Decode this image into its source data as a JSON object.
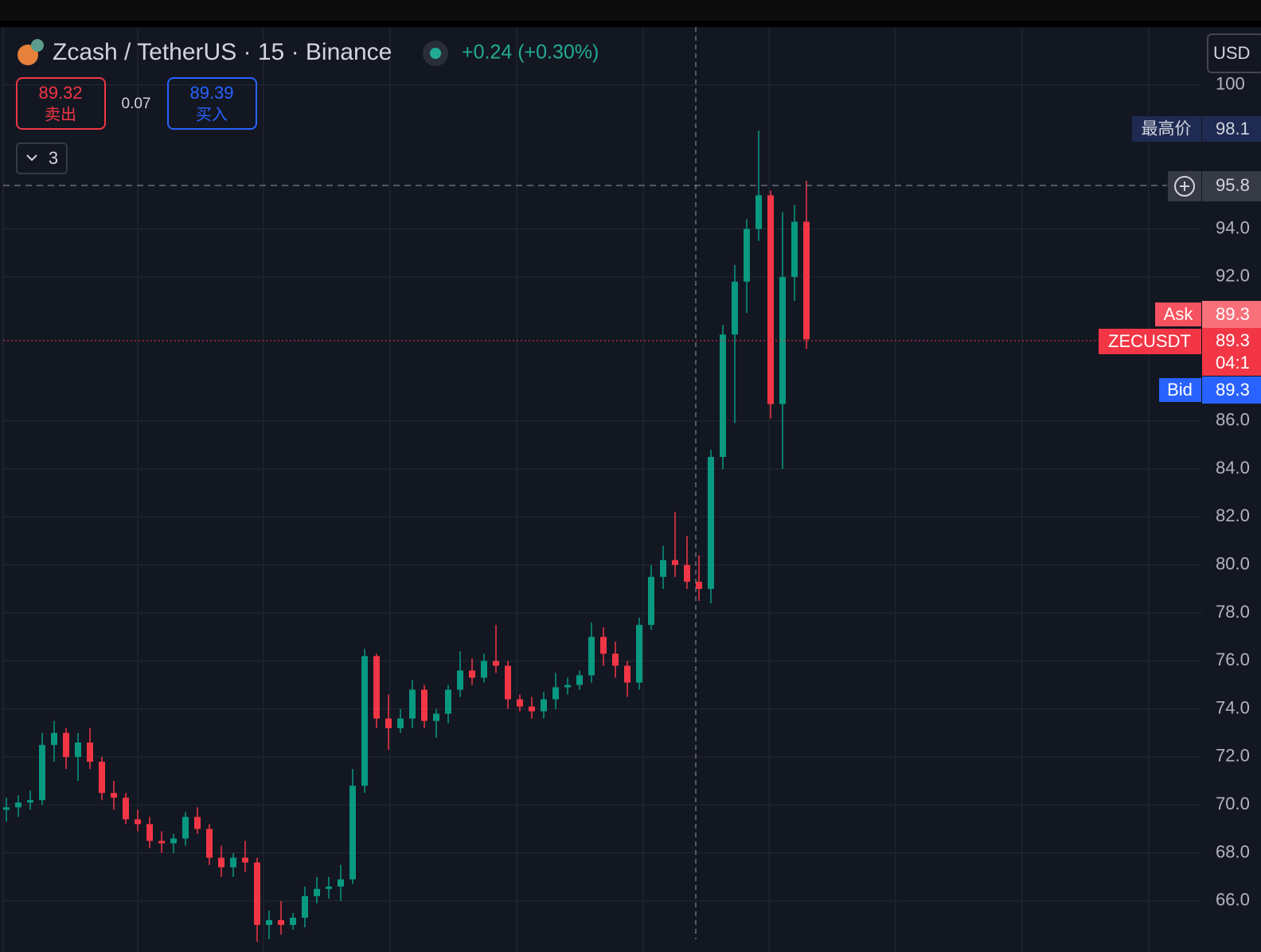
{
  "header": {
    "symbol_title": "Zcash / TetherUS · 15 · Binance",
    "change": "+0.24 (+0.30%)",
    "sell_price": "89.32",
    "sell_label": "卖出",
    "spread": "0.07",
    "buy_price": "89.39",
    "buy_label": "买入",
    "indicator_count": "3",
    "currency": "USD"
  },
  "price_labels": {
    "high_label": "最高价",
    "high_price": "98.1",
    "crosshair_price": "95.8",
    "ask_label": "Ask",
    "ask_price": "89.3",
    "symbol_label": "ZECUSDT",
    "last_price": "89.3",
    "countdown": "04:1",
    "bid_label": "Bid",
    "bid_price": "89.3"
  },
  "chart_data": {
    "type": "candlestick",
    "up_color": "#089981",
    "down_color": "#f23645",
    "grid": true,
    "ylim": [
      64.27,
      102.41
    ],
    "yticks": [
      {
        "value": 66,
        "label": "66.0"
      },
      {
        "value": 68,
        "label": "68.0"
      },
      {
        "value": 70,
        "label": "70.0"
      },
      {
        "value": 72,
        "label": "72.0"
      },
      {
        "value": 74,
        "label": "74.0"
      },
      {
        "value": 76,
        "label": "76.0"
      },
      {
        "value": 78,
        "label": "78.0"
      },
      {
        "value": 80,
        "label": "80.0"
      },
      {
        "value": 82,
        "label": "82.0"
      },
      {
        "value": 84,
        "label": "84.0"
      },
      {
        "value": 86,
        "label": "86.0"
      },
      {
        "value": 92,
        "label": "92.0"
      },
      {
        "value": 94,
        "label": "94.0"
      },
      100
    ],
    "open": [
      69.8,
      69.9,
      70.1,
      70.2,
      72.5,
      73.0,
      72.0,
      72.6,
      71.8,
      70.5,
      70.3,
      69.4,
      69.2,
      68.5,
      68.4,
      68.6,
      69.5,
      69.0,
      67.8,
      67.4,
      67.8,
      67.6,
      65.0,
      65.2,
      65.0,
      65.3,
      66.2,
      66.5,
      66.6,
      66.9,
      70.8,
      76.2,
      73.6,
      73.2,
      73.6,
      74.8,
      73.5,
      73.8,
      74.8,
      75.6,
      75.3,
      76.0,
      75.8,
      74.4,
      74.1,
      73.9,
      74.4,
      74.9,
      75.0,
      75.4,
      77.0,
      76.3,
      75.8,
      75.1,
      77.5,
      79.5,
      80.2,
      80.0,
      79.3,
      79.0,
      84.5,
      89.6,
      91.8,
      94.0,
      95.4,
      86.7,
      92.0,
      94.3
    ],
    "high": [
      70.3,
      70.4,
      70.6,
      73.0,
      73.5,
      73.2,
      73.0,
      73.2,
      72.0,
      71.0,
      70.5,
      69.8,
      69.5,
      68.9,
      68.8,
      69.7,
      69.9,
      69.2,
      68.3,
      68.0,
      68.5,
      67.8,
      65.6,
      66.0,
      65.5,
      66.6,
      67.0,
      67.0,
      67.5,
      71.5,
      76.5,
      76.3,
      74.6,
      74.0,
      75.2,
      75.0,
      74.0,
      75.0,
      76.4,
      76.1,
      76.3,
      77.5,
      76.0,
      74.6,
      74.5,
      74.7,
      75.5,
      75.3,
      75.6,
      77.6,
      77.4,
      76.8,
      76.0,
      77.8,
      80.0,
      80.8,
      82.2,
      81.2,
      80.4,
      84.8,
      90.0,
      92.5,
      94.4,
      98.1,
      95.6,
      94.7,
      95.0,
      96.0
    ],
    "low": [
      69.3,
      69.5,
      69.8,
      70.0,
      71.8,
      71.5,
      71.0,
      71.5,
      70.2,
      69.8,
      69.2,
      68.9,
      68.2,
      68.0,
      68.0,
      68.3,
      68.8,
      67.5,
      67.0,
      67.0,
      67.2,
      64.3,
      64.4,
      64.6,
      64.8,
      64.9,
      65.9,
      66.1,
      66.0,
      66.7,
      70.5,
      73.2,
      72.3,
      73.0,
      73.2,
      73.2,
      72.8,
      73.4,
      74.5,
      75.0,
      75.1,
      75.5,
      74.0,
      73.9,
      73.6,
      73.6,
      74.0,
      74.6,
      74.8,
      75.1,
      75.8,
      75.3,
      74.5,
      74.8,
      77.3,
      79.0,
      79.5,
      79.0,
      78.5,
      78.4,
      84.0,
      85.9,
      90.5,
      93.5,
      86.1,
      84.0,
      91.0,
      89.0
    ],
    "close": [
      69.9,
      70.1,
      70.2,
      72.5,
      73.0,
      72.0,
      72.6,
      71.8,
      70.5,
      70.3,
      69.4,
      69.2,
      68.5,
      68.4,
      68.6,
      69.5,
      69.0,
      67.8,
      67.4,
      67.8,
      67.6,
      65.0,
      65.2,
      65.0,
      65.3,
      66.2,
      66.5,
      66.6,
      66.9,
      70.8,
      76.2,
      73.6,
      73.2,
      73.6,
      74.8,
      73.5,
      73.8,
      74.8,
      75.6,
      75.3,
      76.0,
      75.8,
      74.4,
      74.1,
      73.9,
      74.4,
      74.9,
      75.0,
      75.4,
      77.0,
      76.3,
      75.8,
      75.1,
      77.5,
      79.5,
      80.2,
      80.0,
      79.3,
      79.0,
      84.5,
      89.6,
      91.8,
      94.0,
      95.4,
      86.7,
      92.0,
      94.3,
      89.4
    ]
  }
}
